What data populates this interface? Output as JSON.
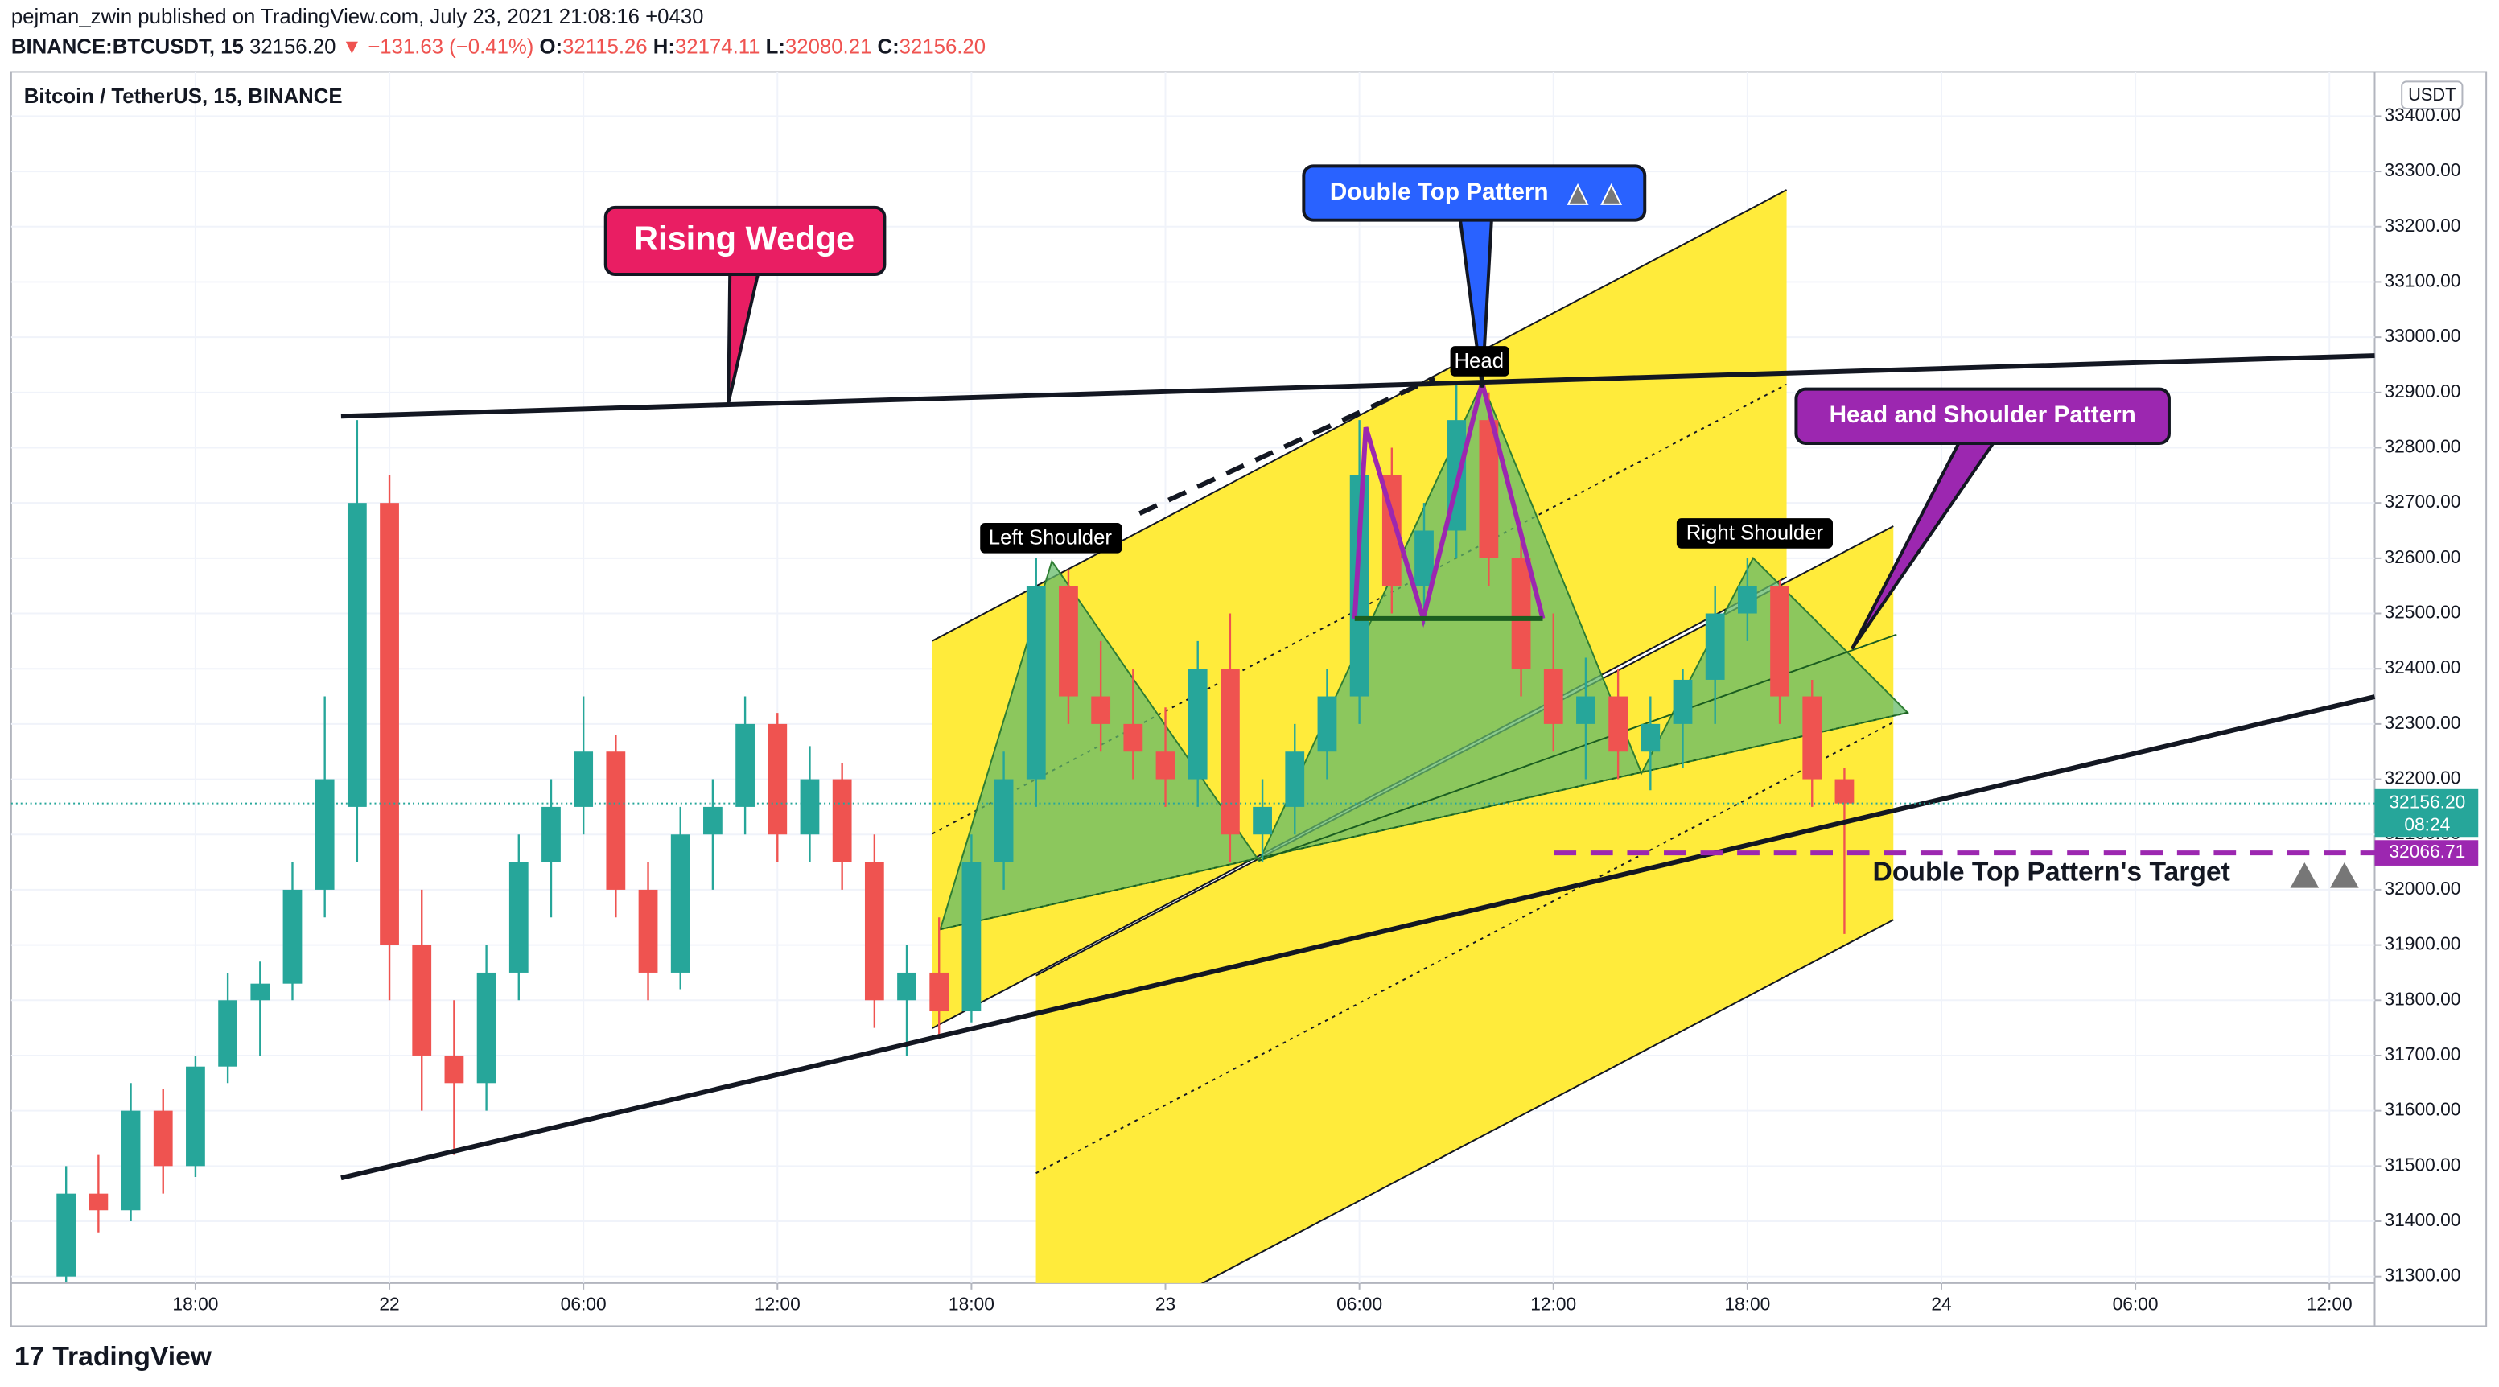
{
  "header": {
    "line1": "pejman_zwin published on TradingView.com, July 23, 2021 21:08:16 +0430",
    "symbol": "BINANCE:BTCUSDT, 15",
    "price": "32156.20",
    "change": "▼ −131.63 (−0.41%)",
    "o_label": "O:",
    "o": "32115.26",
    "h_label": "H:",
    "h": "32174.11",
    "l_label": "L:",
    "l": "32080.21",
    "c_label": "C:",
    "c": "32156.20"
  },
  "footer": {
    "brand": "TradingView"
  },
  "chart_data": {
    "type": "candlestick",
    "title": "Bitcoin / TetherUS, 15, BINANCE",
    "currency": "USDT",
    "up_color": "#26a69a",
    "down_color": "#ef5350",
    "grid": true,
    "xlim": [
      -11.7,
      61.4
    ],
    "ylim": [
      31288,
      33480
    ],
    "xticks": [
      {
        "value": -6,
        "label": "18:00"
      },
      {
        "value": 0,
        "label": "22"
      },
      {
        "value": 6,
        "label": "06:00"
      },
      {
        "value": 12,
        "label": "12:00"
      },
      {
        "value": 18,
        "label": "18:00"
      },
      {
        "value": 24,
        "label": "23"
      },
      {
        "value": 30,
        "label": "06:00"
      },
      {
        "value": 36,
        "label": "12:00"
      },
      {
        "value": 42,
        "label": "18:00"
      },
      {
        "value": 48,
        "label": "24"
      },
      {
        "value": 54,
        "label": "06:00"
      },
      {
        "value": 60,
        "label": "12:00"
      }
    ],
    "yticks": [
      {
        "value": 31300,
        "label": "31300.00"
      },
      {
        "value": 31400,
        "label": "31400.00"
      },
      {
        "value": 31500,
        "label": "31500.00"
      },
      {
        "value": 31600,
        "label": "31600.00"
      },
      {
        "value": 31700,
        "label": "31700.00"
      },
      {
        "value": 31800,
        "label": "31800.00"
      },
      {
        "value": 31900,
        "label": "31900.00"
      },
      {
        "value": 32000,
        "label": "32000.00"
      },
      {
        "value": 32100,
        "label": "32100.00"
      },
      {
        "value": 32200,
        "label": "32200.00"
      },
      {
        "value": 32300,
        "label": "32300.00"
      },
      {
        "value": 32400,
        "label": "32400.00"
      },
      {
        "value": 32500,
        "label": "32500.00"
      },
      {
        "value": 32600,
        "label": "32600.00"
      },
      {
        "value": 32700,
        "label": "32700.00"
      },
      {
        "value": 32800,
        "label": "32800.00"
      },
      {
        "value": 32900,
        "label": "32900.00"
      },
      {
        "value": 33000,
        "label": "33000.00"
      },
      {
        "value": 33100,
        "label": "33100.00"
      },
      {
        "value": 33200,
        "label": "33200.00"
      },
      {
        "value": 33300,
        "label": "33300.00"
      },
      {
        "value": 33400,
        "label": "33400.00"
      }
    ],
    "x": [
      -10,
      -9,
      -8,
      -7,
      -6,
      -5,
      -4,
      -3,
      -2,
      -1,
      0,
      1,
      2,
      3,
      4,
      5,
      6,
      7,
      8,
      9,
      10,
      11,
      12,
      13,
      14,
      15,
      16,
      17,
      18,
      19,
      20,
      21,
      22,
      23,
      24,
      25,
      26,
      27,
      28,
      29,
      30,
      31,
      32,
      33,
      34,
      35,
      36,
      37,
      38,
      39,
      40,
      41,
      42,
      43,
      44,
      45
    ],
    "open": [
      31300,
      31450,
      31420,
      31600,
      31500,
      31680,
      31800,
      31830,
      32000,
      32150,
      32700,
      31900,
      31700,
      31650,
      31850,
      32050,
      32150,
      32250,
      32000,
      31850,
      32100,
      32150,
      32300,
      32100,
      32200,
      32050,
      31800,
      31850,
      31780,
      32050,
      32200,
      32550,
      32350,
      32300,
      32250,
      32200,
      32400,
      32100,
      32150,
      32250,
      32350,
      32750,
      32550,
      32650,
      32850,
      32600,
      32400,
      32300,
      32350,
      32250,
      32300,
      32380,
      32500,
      32550,
      32350,
      32200
    ],
    "high": [
      31500,
      31520,
      31650,
      31640,
      31700,
      31850,
      31870,
      32050,
      32350,
      32850,
      32750,
      32000,
      31800,
      31900,
      32100,
      32200,
      32350,
      32280,
      32050,
      32150,
      32200,
      32350,
      32320,
      32260,
      32230,
      32100,
      31900,
      31950,
      32100,
      32250,
      32600,
      32580,
      32450,
      32400,
      32330,
      32450,
      32500,
      32200,
      32300,
      32400,
      32850,
      32800,
      32700,
      32920,
      32900,
      32650,
      32500,
      32420,
      32400,
      32350,
      32400,
      32550,
      32600,
      32560,
      32380,
      32220
    ],
    "low": [
      31290,
      31380,
      31400,
      31450,
      31480,
      31650,
      31700,
      31800,
      31950,
      32050,
      31800,
      31600,
      31520,
      31600,
      31800,
      31950,
      32100,
      31950,
      31800,
      31820,
      32000,
      32100,
      32050,
      32050,
      32000,
      31750,
      31700,
      31730,
      31760,
      32000,
      32150,
      32300,
      32250,
      32200,
      32150,
      32150,
      32050,
      32050,
      32100,
      32200,
      32300,
      32500,
      32480,
      32600,
      32550,
      32350,
      32250,
      32200,
      32200,
      32180,
      32220,
      32300,
      32450,
      32300,
      32150,
      31920
    ],
    "close": [
      31450,
      31420,
      31600,
      31500,
      31680,
      31800,
      31830,
      32000,
      32200,
      32700,
      31900,
      31700,
      31650,
      31850,
      32050,
      32150,
      32250,
      32000,
      31850,
      32100,
      32150,
      32300,
      32100,
      32200,
      32050,
      31800,
      31850,
      31780,
      32050,
      32200,
      32550,
      32350,
      32300,
      32250,
      32200,
      32400,
      32100,
      32150,
      32250,
      32350,
      32750,
      32550,
      32650,
      32850,
      32600,
      32400,
      32300,
      32350,
      32250,
      32300,
      32380,
      32500,
      32550,
      32350,
      32200,
      32156.2
    ],
    "last_price": {
      "value": 32156.2,
      "label": "32156.20"
    },
    "countdown": "08:24",
    "target": {
      "value": 32066.71,
      "label": "32066.71"
    },
    "annotations": {
      "rising_wedge": "Rising Wedge",
      "double_top": "Double Top Pattern",
      "head": "Head",
      "head_shoulder": "Head and Shoulder Pattern",
      "left_shoulder": "Left Shoulder",
      "right_shoulder": "Right Shoulder",
      "target_text": "Double Top Pattern's Target"
    }
  }
}
